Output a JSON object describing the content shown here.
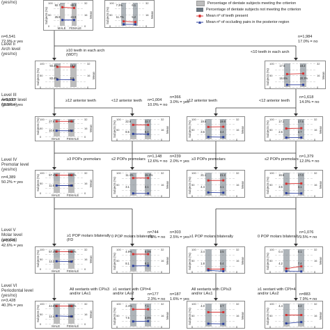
{
  "colors": {
    "meeting": "#bdbdbd",
    "not_meeting": "#6b7680",
    "teeth_line": "#d63030",
    "pairs_line": "#2b3f9e",
    "border": "#888888"
  },
  "legend": [
    {
      "label": "Percentage of dentate subjects meeting the criterion",
      "swatch": "meeting",
      "icon": "gray-bar-icon"
    },
    {
      "label": "Percentage of dentate subjects not meeting the criterion",
      "swatch": "not_meeting",
      "icon": "dark-bar-icon"
    },
    {
      "label": "Mean nº of teeth present",
      "swatch": "teeth_line",
      "icon": "red-line-marker-icon"
    },
    {
      "label": "Mean nº of occluding pairs in the posterior region",
      "swatch": "pairs_line",
      "icon": "blue-line-marker-icon"
    }
  ],
  "top": {
    "yesno": "(yes/no)",
    "n": "n=6,541",
    "pct": "72.9% = yes",
    "n_right": "n=1,984",
    "pct_right": "17.0% = no",
    "subjects_label": "Subjects (%)",
    "mean_label": "Mean"
  },
  "levels": [
    {
      "title": "Level II",
      "sub": "Arch level",
      "yesno": "(yes/no)"
    },
    {
      "title": "Level III",
      "sub": "Anterior level",
      "yesno": "(yes/no)"
    },
    {
      "title": "Level IV",
      "sub": "Premolar level",
      "yesno": "(yes/no)"
    },
    {
      "title": "Level V",
      "sub": "Molar level",
      "yesno": "(yes/no)"
    },
    {
      "title": "Level VI",
      "sub": "Periodontal level",
      "yesno": "(yes/no)"
    }
  ],
  "criteria": {
    "l2_yes": "≥10 teeth in each arch",
    "l2_yes_sub": "(WDT)",
    "l2_no": "<10 teeth in each arch",
    "l3_yes": "≥12 anterior teeth",
    "l3_no": "<12 anterior teeth",
    "l4_yes": "≥3 POPs premolars",
    "l4_no": "≤2 POPs premolars",
    "l5_yes": "≥1 POP molars bilaterally",
    "l5_yes_sub": "(FD",
    "l5_no": "0 POP molars bilaterally",
    "l6_yes": "All sextants with CPI≤3 and/or LA≤1",
    "l6_no": "≥1 sextant with CPI=4 and/or LA≥2"
  },
  "stats": {
    "l3": [
      {
        "n": "n=5,537",
        "pct": "62.9% = yes"
      },
      {
        "n": "n=1,004",
        "pct": "10.0% = no"
      },
      {
        "n": "n=366",
        "pct": "3.0% = yes"
      },
      {
        "n": "n=1,618",
        "pct": "14.0% = no"
      }
    ],
    "l4": [
      {
        "n": "n=4,389",
        "pct": "50.2% = yes"
      },
      {
        "n": "n=1,148",
        "pct": "12.6% = no"
      },
      {
        "n": "n=239",
        "pct": "2.0% = yes"
      },
      {
        "n": "n=1,379",
        "pct": "12.0% = no"
      }
    ],
    "l5": [
      {
        "n": "n=3,645",
        "pct": "42.6% = yes"
      },
      {
        "n": "n=744",
        "pct": "7.6% = no"
      },
      {
        "n": "n=303",
        "pct": "2.5% = yes"
      },
      {
        "n": "n=1,076",
        "pct": "9.5% = no"
      }
    ],
    "l6": [
      {
        "n": "n=3,428",
        "pct": "40.3% = yes"
      },
      {
        "n": "n=177",
        "pct": "2.3% = no"
      },
      {
        "n": "n=187",
        "pct": "1.6% = yes"
      },
      {
        "n": "n=883",
        "pct": "7.9% = no"
      }
    ]
  },
  "panels": [
    {
      "id": "p-top-left",
      "xlabels": [
        "MALE",
        "FEMALE"
      ],
      "labels": [
        "92.7",
        "88.3",
        "25.8",
        "24.8"
      ],
      "meet": [
        92.7,
        88.3
      ],
      "teeth": [
        25.8,
        24.8
      ],
      "pairs": [
        8,
        8
      ]
    },
    {
      "id": "p-top-mid",
      "xlabels": [],
      "labels": [
        "7.3%",
        "6.1",
        "11.7%",
        "5.2"
      ],
      "meet": [
        7.3,
        11.7
      ],
      "teeth": [
        6.1,
        5.2
      ],
      "pairs": [
        2,
        2
      ]
    },
    {
      "id": "p-l2-left",
      "xlabels": [],
      "labels": [
        "93.4%",
        "10.2",
        "83.4%",
        "9.8"
      ],
      "meet": [
        93.4,
        83.4
      ],
      "teeth": [
        27.2,
        27.1
      ],
      "pairs": [
        10.2,
        9.8
      ]
    },
    {
      "id": "p-l2-right",
      "xlabels": [],
      "labels": [
        "17.5",
        "18.2",
        "16.6%",
        "20.3%"
      ],
      "meet": [
        16.6,
        20.3
      ],
      "teeth": [
        17.5,
        18.2
      ],
      "pairs": [
        3,
        3
      ]
    },
    {
      "id": "p-l3-a",
      "xlabels": [
        "MALE",
        "FEMALE"
      ],
      "labels": [
        "27.8",
        "27.8",
        "10.6",
        "10.4"
      ],
      "meet": [
        88,
        86
      ],
      "teeth": [
        27.8,
        27.8
      ],
      "pairs": [
        10.6,
        10.4
      ]
    },
    {
      "id": "p-l3-b",
      "xlabels": [],
      "labels": [
        "22.8",
        "22.7",
        "8.5",
        "8.0"
      ],
      "meet": [
        10,
        12
      ],
      "teeth": [
        22.8,
        22.7
      ],
      "pairs": [
        8.5,
        8.0
      ]
    },
    {
      "id": "p-l3-c",
      "xlabels": [],
      "labels": [
        "19.5",
        "19.8",
        "3.6",
        "3.4"
      ],
      "meet": [
        3,
        3
      ],
      "teeth": [
        19.5,
        19.8
      ],
      "pairs": [
        3.6,
        3.4
      ]
    },
    {
      "id": "p-l3-d",
      "xlabels": [],
      "labels": [
        "17.1",
        "17.5",
        "2.6",
        "2.7"
      ],
      "meet": [
        14,
        14
      ],
      "teeth": [
        17.1,
        17.5
      ],
      "pairs": [
        2.6,
        2.7
      ]
    },
    {
      "id": "p-l4-a",
      "xlabels": [
        "MALE",
        "FEMALE"
      ],
      "labels": [
        "57.4%",
        "55.4%",
        "11.6",
        "11.6"
      ],
      "meet": [
        57.4,
        55.4
      ],
      "teeth": [
        28,
        28
      ],
      "pairs": [
        11.6,
        11.6
      ]
    },
    {
      "id": "p-l4-b",
      "xlabels": [],
      "labels": [
        "11.4%",
        "15.2%",
        "3.1",
        "3.1"
      ],
      "meet": [
        11.4,
        15.2
      ],
      "teeth": [
        24.5,
        24.5
      ],
      "pairs": [
        3.1,
        3.1
      ]
    },
    {
      "id": "p-l4-c",
      "xlabels": [],
      "labels": [
        "21.1",
        "21.2",
        "4.4",
        "4.1"
      ],
      "meet": [
        2,
        2
      ],
      "teeth": [
        21.1,
        21.2
      ],
      "pairs": [
        4.4,
        4.1
      ]
    },
    {
      "id": "p-l4-d",
      "xlabels": [],
      "labels": [
        "16.6",
        "17.0",
        "3.5",
        "3.1"
      ],
      "meet": [
        12,
        12
      ],
      "teeth": [
        16.6,
        17.0
      ],
      "pairs": [
        3.5,
        3.1
      ]
    },
    {
      "id": "p-l5-a",
      "xlabels": [
        "MALE",
        "FEMALE"
      ],
      "labels": [
        "57.4%",
        "54.6%",
        "12.3",
        "11.7"
      ],
      "meet": [
        57.4,
        54.6
      ],
      "teeth": [
        28.2,
        28.0
      ],
      "pairs": [
        12.3,
        11.7
      ]
    },
    {
      "id": "p-l5-b",
      "xlabels": [],
      "labels": [
        "4.9%",
        "8.0%",
        "8.1",
        "8.3"
      ],
      "meet": [
        4.9,
        8.0
      ],
      "teeth": [
        25,
        25
      ],
      "pairs": [
        8.1,
        8.3
      ]
    },
    {
      "id": "p-l5-c",
      "xlabels": [],
      "labels": [
        "3.4",
        "3.5",
        "1.8",
        "0.4"
      ],
      "meet": [
        3,
        3
      ],
      "teeth": [
        3.4,
        3.5
      ],
      "pairs": [
        1.8,
        0.4
      ]
    },
    {
      "id": "p-l5-d",
      "xlabels": [],
      "labels": [
        "0.4",
        "0.1",
        "4.2",
        "7.4"
      ],
      "meet": [
        10,
        10
      ],
      "teeth": [
        4.2,
        7.4
      ],
      "pairs": [
        0.4,
        0.1
      ]
    },
    {
      "id": "p-l6-a",
      "xlabels": [
        "MALE",
        "FEMALE"
      ],
      "labels": [
        "44.5%",
        "38.3%",
        "12.4",
        "11.6"
      ],
      "meet": [
        44.5,
        38.3
      ],
      "teeth": [
        28,
        28
      ],
      "pairs": [
        12.4,
        11.6
      ]
    },
    {
      "id": "p-l6-b",
      "xlabels": [],
      "labels": [
        "2.4%",
        "7.1",
        "7.5",
        "2.8%"
      ],
      "meet": [
        2.4,
        2.8
      ],
      "teeth": [
        24,
        24
      ],
      "pairs": [
        7.1,
        7.5
      ]
    },
    {
      "id": "p-l6-c",
      "xlabels": [],
      "labels": [
        "4.0",
        "3.7"
      ],
      "meet": [
        2,
        2
      ],
      "teeth": [
        20,
        20
      ],
      "pairs": [
        4.0,
        3.7
      ]
    },
    {
      "id": "p-l6-d",
      "xlabels": [],
      "labels": [
        "4.4",
        "6.2"
      ],
      "meet": [
        8,
        8
      ],
      "teeth": [
        16,
        16
      ],
      "pairs": [
        4.4,
        6.2
      ]
    }
  ]
}
